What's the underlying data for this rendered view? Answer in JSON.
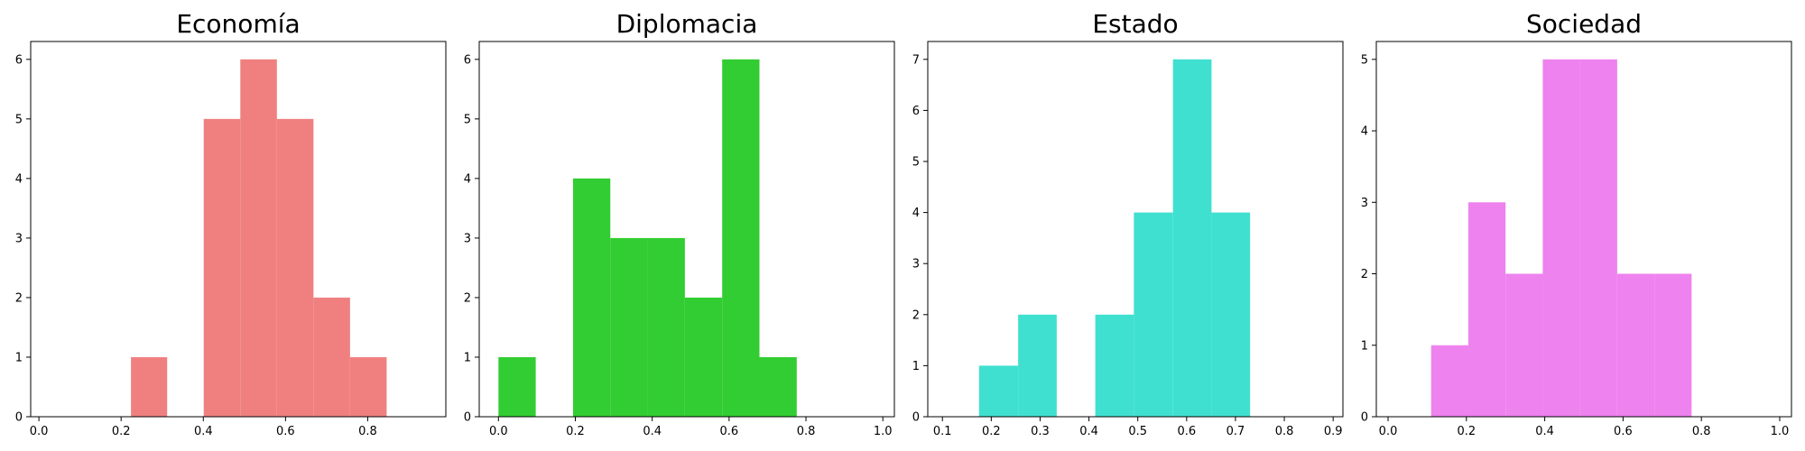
{
  "chart_data": [
    {
      "type": "bar",
      "title": "Economía",
      "color": "#f08080",
      "xlim": [
        -0.02,
        0.99
      ],
      "ylim": [
        0,
        6.3
      ],
      "xticks": [
        0.0,
        0.2,
        0.4,
        0.6,
        0.8
      ],
      "xtick_labels": [
        "0.0",
        "0.2",
        "0.4",
        "0.6",
        "0.8"
      ],
      "yticks": [
        0,
        1,
        2,
        3,
        4,
        5,
        6
      ],
      "ytick_labels": [
        "0",
        "1",
        "2",
        "3",
        "4",
        "5",
        "6"
      ],
      "bins": [
        {
          "x0": 0.224,
          "x1": 0.312,
          "count": 1
        },
        {
          "x0": 0.401,
          "x1": 0.49,
          "count": 5
        },
        {
          "x0": 0.49,
          "x1": 0.579,
          "count": 6
        },
        {
          "x0": 0.579,
          "x1": 0.668,
          "count": 5
        },
        {
          "x0": 0.668,
          "x1": 0.757,
          "count": 2
        },
        {
          "x0": 0.757,
          "x1": 0.846,
          "count": 1
        }
      ]
    },
    {
      "type": "bar",
      "title": "Diplomacia",
      "color": "#32cd32",
      "xlim": [
        -0.05,
        1.03
      ],
      "ylim": [
        0,
        6.3
      ],
      "xticks": [
        0.0,
        0.2,
        0.4,
        0.6,
        0.8,
        1.0
      ],
      "xtick_labels": [
        "0.0",
        "0.2",
        "0.4",
        "0.6",
        "0.8",
        "1.0"
      ],
      "yticks": [
        0,
        1,
        2,
        3,
        4,
        5,
        6
      ],
      "ytick_labels": [
        "0",
        "1",
        "2",
        "3",
        "4",
        "5",
        "6"
      ],
      "bins": [
        {
          "x0": 0.0,
          "x1": 0.097,
          "count": 1
        },
        {
          "x0": 0.194,
          "x1": 0.291,
          "count": 4
        },
        {
          "x0": 0.291,
          "x1": 0.388,
          "count": 3
        },
        {
          "x0": 0.388,
          "x1": 0.485,
          "count": 3
        },
        {
          "x0": 0.485,
          "x1": 0.582,
          "count": 2
        },
        {
          "x0": 0.582,
          "x1": 0.679,
          "count": 6
        },
        {
          "x0": 0.679,
          "x1": 0.776,
          "count": 1
        }
      ]
    },
    {
      "type": "bar",
      "title": "Estado",
      "color": "#40e0d0",
      "xlim": [
        0.07,
        0.92
      ],
      "ylim": [
        0,
        7.35
      ],
      "xticks": [
        0.1,
        0.2,
        0.3,
        0.4,
        0.5,
        0.6,
        0.7,
        0.8,
        0.9
      ],
      "xtick_labels": [
        "0.1",
        "0.2",
        "0.3",
        "0.4",
        "0.5",
        "0.6",
        "0.7",
        "0.8",
        "0.9"
      ],
      "yticks": [
        0,
        1,
        2,
        3,
        4,
        5,
        6,
        7
      ],
      "ytick_labels": [
        "0",
        "1",
        "2",
        "3",
        "4",
        "5",
        "6",
        "7"
      ],
      "bins": [
        {
          "x0": 0.175,
          "x1": 0.255,
          "count": 1
        },
        {
          "x0": 0.255,
          "x1": 0.334,
          "count": 2
        },
        {
          "x0": 0.413,
          "x1": 0.492,
          "count": 2
        },
        {
          "x0": 0.492,
          "x1": 0.572,
          "count": 4
        },
        {
          "x0": 0.572,
          "x1": 0.651,
          "count": 7
        },
        {
          "x0": 0.651,
          "x1": 0.73,
          "count": 4
        }
      ]
    },
    {
      "type": "bar",
      "title": "Sociedad",
      "color": "#ee82ee",
      "xlim": [
        -0.03,
        1.03
      ],
      "ylim": [
        0,
        5.25
      ],
      "xticks": [
        0.0,
        0.2,
        0.4,
        0.6,
        0.8,
        1.0
      ],
      "xtick_labels": [
        "0.0",
        "0.2",
        "0.4",
        "0.6",
        "0.8",
        "1.0"
      ],
      "yticks": [
        0,
        1,
        2,
        3,
        4,
        5
      ],
      "ytick_labels": [
        "0",
        "1",
        "2",
        "3",
        "4",
        "5"
      ],
      "bins": [
        {
          "x0": 0.11,
          "x1": 0.205,
          "count": 1
        },
        {
          "x0": 0.205,
          "x1": 0.3,
          "count": 3
        },
        {
          "x0": 0.3,
          "x1": 0.395,
          "count": 2
        },
        {
          "x0": 0.395,
          "x1": 0.49,
          "count": 5
        },
        {
          "x0": 0.49,
          "x1": 0.585,
          "count": 5
        },
        {
          "x0": 0.585,
          "x1": 0.68,
          "count": 2
        },
        {
          "x0": 0.68,
          "x1": 0.775,
          "count": 2
        }
      ]
    }
  ]
}
